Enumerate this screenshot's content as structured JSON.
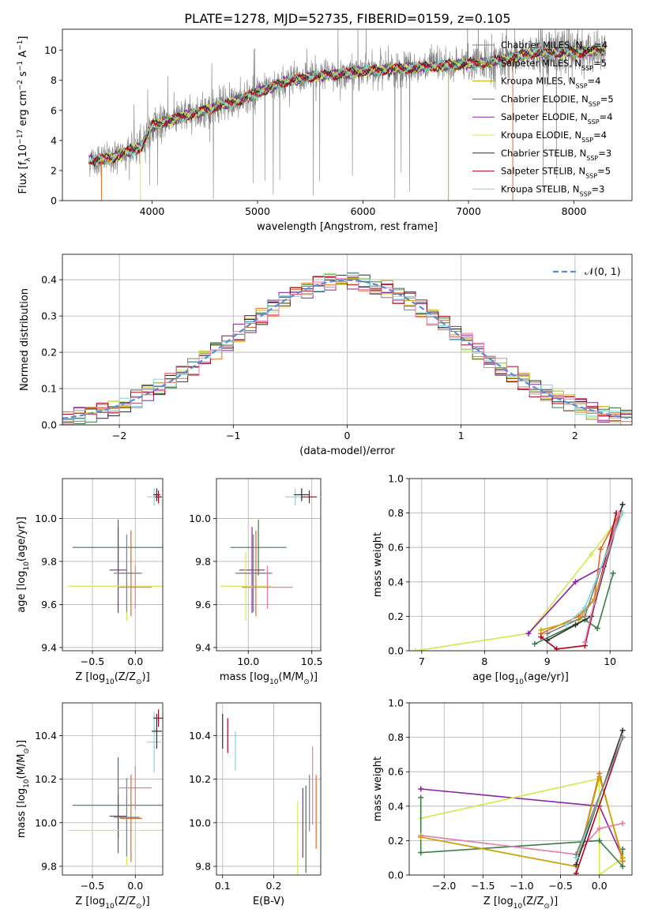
{
  "figure_title": "PLATE=1278, MJD=52735, FIBERID=0159, z=0.105",
  "colors": {
    "Chabrier MILES": "#7f7f7f",
    "Salpeter MILES": "#e36a24",
    "Kroupa MILES": "#c8a800",
    "Chabrier ELODIE": "#3a7d44",
    "Salpeter ELODIE": "#8e1fa8",
    "Kroupa ELODIE": "#d4e84a",
    "Chabrier STELIB": "#2f2f2f",
    "Salpeter STELIB": "#b0001a",
    "Kroupa STELIB": "#7fd6d9",
    "Extra": "#e87aa8",
    "normal": "#5b8bd6"
  },
  "chart_data": [
    {
      "id": "spectrum",
      "type": "line",
      "xlabel": "wavelength [Angstrom, rest frame]",
      "ylabel_main": "Flux [f",
      "ylabel_sub": "λ",
      "ylabel_rest": "10",
      "ylabel_exp1": "−17",
      "ylabel_mid": " erg cm",
      "ylabel_exp2": "−2",
      "ylabel_mid2": " s",
      "ylabel_exp3": "−1",
      "ylabel_mid3": " A",
      "ylabel_exp4": "−1",
      "ylabel_end": "]",
      "xlim": [
        3150,
        8550
      ],
      "ylim": [
        0,
        11.4
      ],
      "xticks": [
        "4000",
        "5000",
        "6000",
        "7000",
        "8000"
      ],
      "yticks": [
        "0",
        "2",
        "4",
        "6",
        "8",
        "10"
      ],
      "legend_position": "top-right",
      "legend": [
        {
          "name": "Chabrier MILES",
          "nssp": "4"
        },
        {
          "name": "Salpeter MILES",
          "nssp": "5"
        },
        {
          "name": "Kroupa MILES",
          "nssp": "4"
        },
        {
          "name": "Chabrier ELODIE",
          "nssp": "5"
        },
        {
          "name": "Salpeter ELODIE",
          "nssp": "4"
        },
        {
          "name": "Kroupa ELODIE",
          "nssp": "4"
        },
        {
          "name": "Chabrier STELIB",
          "nssp": "3"
        },
        {
          "name": "Salpeter STELIB",
          "nssp": "5"
        },
        {
          "name": "Kroupa STELIB",
          "nssp": "3"
        }
      ],
      "nssp_label": "N",
      "nssp_sub": "SSP",
      "continuum": [
        [
          3400,
          2.7
        ],
        [
          3600,
          2.8
        ],
        [
          3750,
          3.2
        ],
        [
          3900,
          3.6
        ],
        [
          4000,
          5.0
        ],
        [
          4200,
          5.4
        ],
        [
          4500,
          6.0
        ],
        [
          4800,
          6.6
        ],
        [
          5000,
          7.2
        ],
        [
          5300,
          8.0
        ],
        [
          5600,
          8.3
        ],
        [
          6000,
          8.6
        ],
        [
          6400,
          8.8
        ],
        [
          6800,
          9.0
        ],
        [
          7200,
          9.2
        ],
        [
          7400,
          9.5
        ],
        [
          7600,
          9.8
        ],
        [
          8000,
          9.9
        ],
        [
          8300,
          10.0
        ]
      ]
    },
    {
      "id": "residuals",
      "type": "histogram",
      "xlabel": "(data-model)/error",
      "ylabel": "Normed distribution",
      "xlim": [
        -2.5,
        2.5
      ],
      "ylim": [
        0,
        0.47
      ],
      "xticks": [
        "−2",
        "−1",
        "0",
        "1",
        "2"
      ],
      "yticks": [
        "0.0",
        "0.1",
        "0.2",
        "0.3",
        "0.4"
      ],
      "bin_width": 0.1,
      "bin_start": -2.5,
      "legend_label": "𝒩(0, 1)",
      "legend_position": "top-right",
      "grid": true
    },
    {
      "id": "age_vs_Z",
      "type": "errorbar",
      "xlabel": "Z [log",
      "xlabel_sub": "10",
      "xlabel_rest": "(Z/Z",
      "xlabel_sun": "⊙",
      "xlabel_end": ")]",
      "ylabel": "age  [log",
      "ylabel_sub": "10",
      "ylabel_rest": "(age/yr)]",
      "xlim": [
        -0.85,
        0.32
      ],
      "ylim": [
        9.385,
        10.185
      ],
      "xticks": [
        "−0.5",
        "0.0"
      ],
      "yticks": [
        "9.4",
        "9.6",
        "9.8",
        "10.0"
      ],
      "points": [
        {
          "model": "Chabrier ELODIE",
          "x": -0.2,
          "xerr": 0.53,
          "y": 9.865,
          "yerr": 0.13
        },
        {
          "model": "Salpeter ELODIE",
          "x": -0.2,
          "xerr": 0.1,
          "y": 9.76,
          "yerr": 0.2
        },
        {
          "model": "Kroupa ELODIE",
          "x": -0.1,
          "xerr": 0.68,
          "y": 9.685,
          "yerr": 0.16
        },
        {
          "model": "Salpeter MILES",
          "x": -0.05,
          "xerr": 0.13,
          "y": 9.745,
          "yerr": 0.2
        },
        {
          "model": "Chabrier MILES",
          "x": -0.1,
          "xerr": 0.15,
          "y": 9.745,
          "yerr": 0.18
        },
        {
          "model": "Extra",
          "x": 0.0,
          "xerr": 0.19,
          "y": 9.68,
          "yerr": 0.1
        },
        {
          "model": "Kroupa STELIB",
          "x": 0.22,
          "xerr": 0.08,
          "y": 10.1,
          "yerr": 0.04
        },
        {
          "model": "Chabrier STELIB",
          "x": 0.25,
          "xerr": 0.04,
          "y": 10.11,
          "yerr": 0.03
        },
        {
          "model": "Salpeter STELIB",
          "x": 0.27,
          "xerr": 0.04,
          "y": 10.1,
          "yerr": 0.03
        }
      ]
    },
    {
      "id": "age_vs_mass",
      "type": "errorbar",
      "xlabel": "mass [log",
      "xlabel_sub": "10",
      "xlabel_rest": "(M/M",
      "xlabel_sun": "⊙",
      "xlabel_end": ")]",
      "xlim": [
        9.75,
        10.57
      ],
      "ylim": [
        9.385,
        10.185
      ],
      "xticks": [
        "10.0",
        "10.5"
      ],
      "yticks": [
        "9.4",
        "9.6",
        "9.8",
        "10.0"
      ],
      "points": [
        {
          "model": "Chabrier ELODIE",
          "x": 10.08,
          "xerr": 0.22,
          "y": 9.865,
          "yerr": 0.13
        },
        {
          "model": "Salpeter ELODIE",
          "x": 10.03,
          "xerr": 0.1,
          "y": 9.76,
          "yerr": 0.2
        },
        {
          "model": "Kroupa ELODIE",
          "x": 9.98,
          "xerr": 0.2,
          "y": 9.685,
          "yerr": 0.16
        },
        {
          "model": "Salpeter MILES",
          "x": 10.06,
          "xerr": 0.13,
          "y": 9.745,
          "yerr": 0.2
        },
        {
          "model": "Chabrier MILES",
          "x": 10.04,
          "xerr": 0.14,
          "y": 9.745,
          "yerr": 0.18
        },
        {
          "model": "Extra",
          "x": 10.15,
          "xerr": 0.2,
          "y": 9.68,
          "yerr": 0.1
        },
        {
          "model": "Kroupa STELIB",
          "x": 10.37,
          "xerr": 0.08,
          "y": 10.1,
          "yerr": 0.04
        },
        {
          "model": "Chabrier STELIB",
          "x": 10.42,
          "xerr": 0.06,
          "y": 10.11,
          "yerr": 0.03
        },
        {
          "model": "Salpeter STELIB",
          "x": 10.48,
          "xerr": 0.06,
          "y": 10.1,
          "yerr": 0.03
        }
      ]
    },
    {
      "id": "weight_vs_age",
      "type": "line",
      "xlabel": "age  [log",
      "xlabel_sub": "10",
      "xlabel_rest": "(age/yr)]",
      "ylabel": "mass weight",
      "xlim": [
        6.8,
        10.35
      ],
      "ylim": [
        0,
        1.0
      ],
      "xticks": [
        "7",
        "8",
        "9",
        "10"
      ],
      "yticks": [
        "0.0",
        "0.2",
        "0.4",
        "0.6",
        "0.8",
        "1.0"
      ],
      "series": [
        {
          "model": "Kroupa ELODIE",
          "x": [
            6.9,
            8.7,
            9.7,
            10.2
          ],
          "y": [
            0.0,
            0.1,
            0.56,
            0.8
          ]
        },
        {
          "model": "Salpeter ELODIE",
          "x": [
            8.7,
            9.45,
            9.9,
            10.15
          ],
          "y": [
            0.1,
            0.4,
            0.49,
            0.8
          ]
        },
        {
          "model": "Chabrier ELODIE",
          "x": [
            8.8,
            9.6,
            9.8,
            10.05
          ],
          "y": [
            0.04,
            0.18,
            0.13,
            0.45
          ]
        },
        {
          "model": "Salpeter MILES",
          "x": [
            8.9,
            9.5,
            9.75,
            9.85,
            10.15
          ],
          "y": [
            0.1,
            0.2,
            0.3,
            0.59,
            0.8
          ]
        },
        {
          "model": "Kroupa MILES",
          "x": [
            8.9,
            9.5,
            9.75,
            10.15
          ],
          "y": [
            0.12,
            0.18,
            0.3,
            0.8
          ]
        },
        {
          "model": "Chabrier MILES",
          "x": [
            9.0,
            9.6,
            10.15
          ],
          "y": [
            0.1,
            0.2,
            0.8
          ]
        },
        {
          "model": "Salpeter STELIB",
          "x": [
            8.9,
            9.15,
            9.6,
            10.1
          ],
          "y": [
            0.08,
            0.01,
            0.03,
            0.8
          ]
        },
        {
          "model": "Chabrier STELIB",
          "x": [
            9.0,
            9.45,
            9.7,
            10.2
          ],
          "y": [
            0.06,
            0.15,
            0.2,
            0.85
          ]
        },
        {
          "model": "Kroupa STELIB",
          "x": [
            9.3,
            9.6,
            10.2
          ],
          "y": [
            0.15,
            0.25,
            0.8
          ]
        },
        {
          "model": "Extra",
          "x": [
            9.6,
            9.75,
            10.15
          ],
          "y": [
            0.05,
            0.28,
            0.8
          ]
        }
      ]
    },
    {
      "id": "mass_vs_Z",
      "type": "errorbar",
      "xlabel": "Z [log",
      "xlabel_sub": "10",
      "xlabel_rest": "(Z/Z",
      "xlabel_sun": "⊙",
      "xlabel_end": ")]",
      "ylabel": "mass [log",
      "ylabel_sub": "10",
      "ylabel_rest": "(M/M",
      "ylabel_sun": "⊙",
      "ylabel_end": ")]",
      "xlim": [
        -0.85,
        0.32
      ],
      "ylim": [
        9.76,
        10.55
      ],
      "xticks": [
        "−0.5",
        "0.0"
      ],
      "yticks": [
        "9.8",
        "10.0",
        "10.2",
        "10.4"
      ],
      "points": [
        {
          "model": "Chabrier ELODIE",
          "x": -0.2,
          "xerr": 0.53,
          "y": 10.08,
          "yerr": 0.22
        },
        {
          "model": "Salpeter ELODIE",
          "x": -0.2,
          "xerr": 0.1,
          "y": 10.03,
          "yerr": 0.1
        },
        {
          "model": "Kroupa ELODIE",
          "x": -0.1,
          "xerr": 0.68,
          "y": 9.965,
          "yerr": 0.16
        },
        {
          "model": "Salpeter MILES",
          "x": -0.05,
          "xerr": 0.13,
          "y": 10.02,
          "yerr": 0.2
        },
        {
          "model": "Chabrier MILES",
          "x": -0.1,
          "xerr": 0.15,
          "y": 10.025,
          "yerr": 0.18
        },
        {
          "model": "Extra",
          "x": 0.0,
          "xerr": 0.19,
          "y": 10.16,
          "yerr": 0.1
        },
        {
          "model": "Kroupa STELIB",
          "x": 0.22,
          "xerr": 0.08,
          "y": 10.37,
          "yerr": 0.14
        },
        {
          "model": "Chabrier STELIB",
          "x": 0.25,
          "xerr": 0.06,
          "y": 10.42,
          "yerr": 0.08
        },
        {
          "model": "Salpeter STELIB",
          "x": 0.27,
          "xerr": 0.06,
          "y": 10.48,
          "yerr": 0.04
        }
      ]
    },
    {
      "id": "mass_vs_ebv",
      "type": "errorbar",
      "xlabel": "E(B-V)",
      "xlim": [
        0.088,
        0.292
      ],
      "ylim": [
        9.76,
        10.55
      ],
      "xticks": [
        "0.1",
        "0.2"
      ],
      "yticks": [
        "9.8",
        "10.0",
        "10.2",
        "10.4"
      ],
      "points": [
        {
          "model": "Chabrier STELIB",
          "x": 0.1,
          "y": 10.42,
          "yerr": 0.08
        },
        {
          "model": "Salpeter STELIB",
          "x": 0.11,
          "y": 10.4,
          "yerr": 0.08
        },
        {
          "model": "Kroupa STELIB",
          "x": 0.125,
          "y": 10.33,
          "yerr": 0.09
        },
        {
          "model": "Kroupa ELODIE",
          "x": 0.247,
          "y": 9.9,
          "yerr": 0.2
        },
        {
          "model": "Salpeter ELODIE",
          "x": 0.257,
          "y": 10.0,
          "yerr": 0.16
        },
        {
          "model": "Chabrier ELODIE",
          "x": 0.263,
          "y": 9.97,
          "yerr": 0.2
        },
        {
          "model": "Chabrier MILES",
          "x": 0.27,
          "y": 10.09,
          "yerr": 0.13
        },
        {
          "model": "Extra",
          "x": 0.276,
          "y": 10.17,
          "yerr": 0.18
        },
        {
          "model": "Salpeter MILES",
          "x": 0.283,
          "y": 10.05,
          "yerr": 0.17
        }
      ]
    },
    {
      "id": "weight_vs_Z",
      "type": "line",
      "xlabel": "Z [log",
      "xlabel_sub": "10",
      "xlabel_rest": "(Z/Z",
      "xlabel_sun": "⊙",
      "xlabel_end": ")]",
      "ylabel": "mass weight",
      "xlim": [
        -2.45,
        0.42
      ],
      "ylim": [
        0,
        1.0
      ],
      "xticks": [
        "−2.0",
        "−1.5",
        "−1.0",
        "−0.5",
        "0.0"
      ],
      "yticks": [
        "0.0",
        "0.2",
        "0.4",
        "0.6",
        "0.8",
        "1.0"
      ],
      "series": [
        {
          "model": "Salpeter ELODIE",
          "x": [
            -2.3,
            0.0,
            0.3
          ],
          "y": [
            0.5,
            0.4,
            0.1
          ]
        },
        {
          "model": "Kroupa ELODIE",
          "x": [
            -2.3,
            0.0,
            0.0,
            0.3
          ],
          "y": [
            0.33,
            0.56,
            0.0,
            0.1
          ]
        },
        {
          "model": "Chabrier ELODIE",
          "x": [
            -2.3,
            -2.3,
            0.0,
            0.3,
            0.3
          ],
          "y": [
            0.45,
            0.13,
            0.2,
            0.05,
            0.15
          ]
        },
        {
          "model": "Extra",
          "x": [
            -2.3,
            -0.3,
            0.0,
            0.3
          ],
          "y": [
            0.23,
            0.12,
            0.27,
            0.3
          ]
        },
        {
          "model": "Salpeter MILES",
          "x": [
            -2.3,
            -0.3,
            0.0,
            0.3
          ],
          "y": [
            0.22,
            0.05,
            0.59,
            0.08
          ]
        },
        {
          "model": "Kroupa MILES",
          "x": [
            -2.3,
            -0.3,
            0.0,
            0.3
          ],
          "y": [
            0.22,
            0.05,
            0.57,
            0.1
          ]
        },
        {
          "model": "Salpeter STELIB",
          "x": [
            -0.3,
            0.3
          ],
          "y": [
            0.01,
            0.8
          ]
        },
        {
          "model": "Chabrier STELIB",
          "x": [
            -0.3,
            0.3
          ],
          "y": [
            0.06,
            0.84
          ]
        },
        {
          "model": "Kroupa STELIB",
          "x": [
            -0.3,
            0.3
          ],
          "y": [
            0.1,
            0.8
          ]
        },
        {
          "model": "Chabrier MILES",
          "x": [
            -0.3,
            0.3
          ],
          "y": [
            0.12,
            0.8
          ]
        }
      ]
    }
  ]
}
